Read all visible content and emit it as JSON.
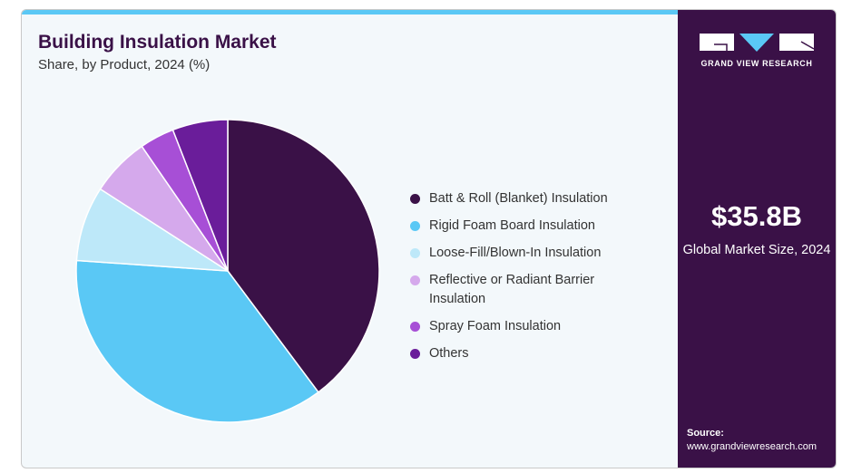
{
  "title": "Building Insulation Market",
  "subtitle": "Share, by Product, 2024 (%)",
  "brand": {
    "name": "GRAND VIEW RESEARCH"
  },
  "market": {
    "value": "$35.8B",
    "label": "Global Market Size, 2024"
  },
  "source": {
    "label": "Source:",
    "url": "www.grandviewresearch.com"
  },
  "chart_data": {
    "type": "pie",
    "title": "Building Insulation Market",
    "subtitle": "Share, by Product, 2024 (%)",
    "legend_position": "right",
    "slices": [
      {
        "label": "Batt & Roll (Blanket) Insulation",
        "value": 39.8,
        "color": "#3a1147"
      },
      {
        "label": "Rigid Foam Board Insulation",
        "value": 36.3,
        "color": "#5ac8f5"
      },
      {
        "label": "Loose-Fill/Blown-In Insulation",
        "value": 8.0,
        "color": "#bde8f9"
      },
      {
        "label": "Reflective or Radiant Barrier Insulation",
        "value": 6.3,
        "color": "#d5a9ec"
      },
      {
        "label": "Spray Foam Insulation",
        "value": 3.7,
        "color": "#a74fd6"
      },
      {
        "label": "Others",
        "value": 5.9,
        "color": "#6a1d9a"
      }
    ]
  }
}
